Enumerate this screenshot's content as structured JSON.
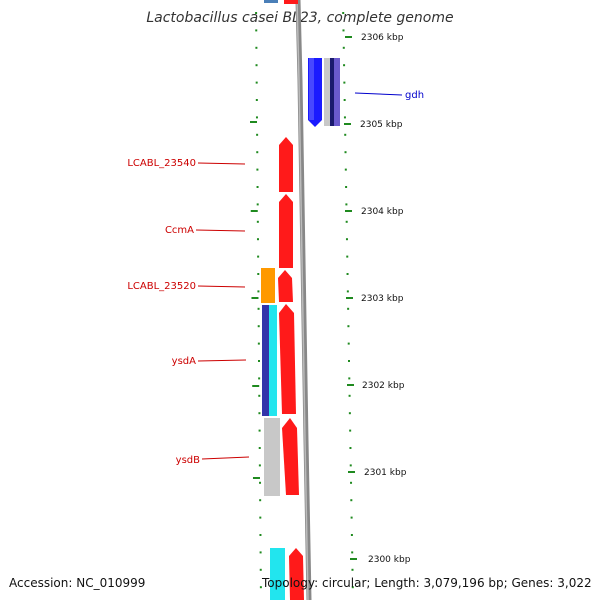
{
  "title": "Lactobacillus casei BL23, complete genome",
  "accession_text": "Accession: NC_010999",
  "topology_text": "Topology: circular; Length: 3,079,196 bp; Genes: 3,022",
  "scale_labels": [
    "2306 kbp",
    "2305 kbp",
    "2304 kbp",
    "2303 kbp",
    "2302 kbp",
    "2301 kbp",
    "2300 kbp"
  ],
  "gene_labels": [
    {
      "text": "gdh",
      "color": "#0000cc",
      "side": "right"
    },
    {
      "text": "LCABL_23540",
      "color": "#cc0000",
      "side": "left"
    },
    {
      "text": "CcmA",
      "color": "#cc0000",
      "side": "left"
    },
    {
      "text": "LCABL_23520",
      "color": "#cc0000",
      "side": "left"
    },
    {
      "text": "ysdA",
      "color": "#cc0000",
      "side": "left"
    },
    {
      "text": "ysdB",
      "color": "#cc0000",
      "side": "left"
    }
  ],
  "colors": {
    "backbone": "#888888",
    "ticks": "#1f8a1f",
    "red_feature": "#ff1a1a",
    "blue_feature": "#1a1aff",
    "cyan_feature": "#22e5ee",
    "orange_feature": "#ff9900",
    "gray_feature": "#c8c8c8",
    "navy_feature": "#3333aa"
  }
}
